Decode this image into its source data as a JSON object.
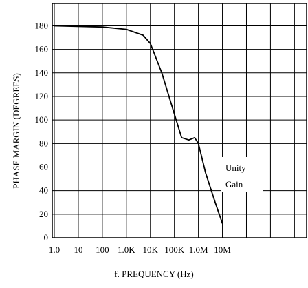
{
  "chart_data": {
    "type": "line",
    "xlabel": "f. PREQUENCY (Hz)",
    "ylabel": "PHASE MARGIN (DEGREES)",
    "annotation": [
      "Unity",
      "Gain"
    ],
    "log_x": true,
    "grid": true,
    "xlim": [
      0.82,
      32000000000
    ],
    "ylim": [
      0,
      199
    ],
    "xticks": [
      {
        "value": 1,
        "label": "1.0"
      },
      10,
      100,
      {
        "value": 1000,
        "label": "1.0K"
      },
      {
        "value": 10000,
        "label": "10K"
      },
      {
        "value": 100000,
        "label": "100K"
      },
      {
        "value": 1000000,
        "label": "1.0M"
      },
      {
        "value": 10000000,
        "label": "10M"
      }
    ],
    "xgrid": [
      100000000,
      1000000000,
      10000000000
    ],
    "yticks": [
      0,
      20,
      40,
      60,
      80,
      100,
      120,
      140,
      160,
      180
    ],
    "series": [
      {
        "color": "#000000",
        "x": [
          1,
          100,
          1000,
          5000,
          10000,
          30000,
          100000,
          200000,
          400000,
          700000,
          1000000,
          2000000,
          5000000,
          10000000
        ],
        "values": [
          180,
          179,
          177,
          172,
          165,
          140,
          105,
          85,
          83,
          85,
          80,
          55,
          30,
          12
        ]
      }
    ]
  }
}
